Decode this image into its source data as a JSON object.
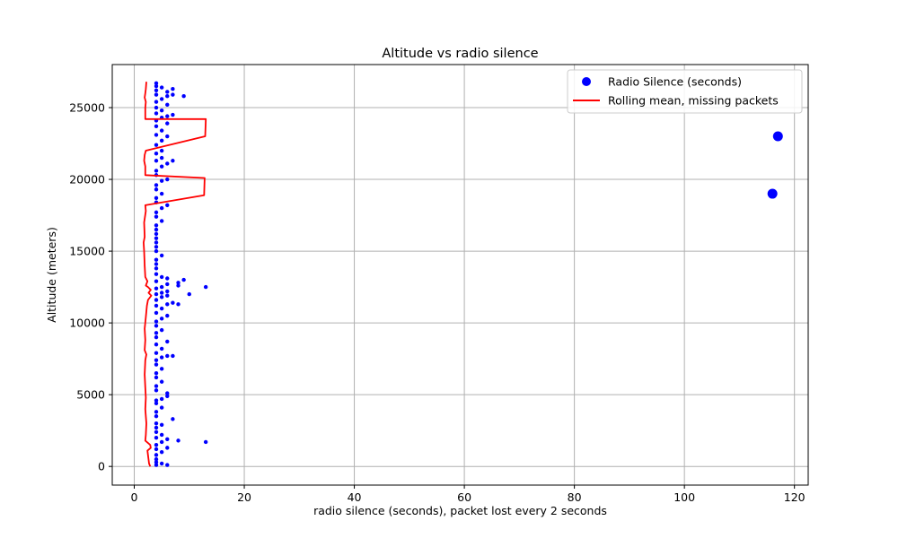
{
  "chart_data": {
    "type": "scatter",
    "title": "Altitude vs radio silence",
    "xlabel": "radio silence (seconds), packet lost every 2 seconds",
    "ylabel": "Altitude (meters)",
    "xlim": [
      -4,
      122.5
    ],
    "ylim": [
      -1300,
      28000
    ],
    "xticks": [
      0,
      20,
      40,
      60,
      80,
      100,
      120
    ],
    "yticks": [
      0,
      5000,
      10000,
      15000,
      20000,
      25000
    ],
    "grid": true,
    "legend_placement": "top-right",
    "colors": {
      "scatter": "#0000ff",
      "line": "#ff0000",
      "grid": "#b0b0b0"
    },
    "series": [
      {
        "name": "Radio Silence (seconds)",
        "kind": "scatter",
        "points": [
          [
            4,
            100
          ],
          [
            4,
            300
          ],
          [
            4,
            500
          ],
          [
            5,
            200
          ],
          [
            6,
            100
          ],
          [
            4,
            800
          ],
          [
            5,
            1000
          ],
          [
            4,
            1200
          ],
          [
            6,
            1300
          ],
          [
            4,
            1500
          ],
          [
            5,
            1700
          ],
          [
            6,
            1900
          ],
          [
            8,
            1800
          ],
          [
            13,
            1700
          ],
          [
            4,
            2000
          ],
          [
            5,
            2200
          ],
          [
            4,
            2400
          ],
          [
            4,
            2700
          ],
          [
            5,
            2900
          ],
          [
            7,
            3300
          ],
          [
            4,
            3000
          ],
          [
            4,
            3500
          ],
          [
            4,
            3800
          ],
          [
            5,
            4100
          ],
          [
            4,
            4400
          ],
          [
            5,
            4700
          ],
          [
            6,
            4900
          ],
          [
            6,
            5100
          ],
          [
            4,
            4600
          ],
          [
            4,
            5300
          ],
          [
            4,
            5600
          ],
          [
            5,
            5900
          ],
          [
            4,
            6200
          ],
          [
            4,
            6500
          ],
          [
            5,
            6800
          ],
          [
            4,
            7100
          ],
          [
            4,
            7400
          ],
          [
            5,
            7600
          ],
          [
            6,
            7700
          ],
          [
            7,
            7700
          ],
          [
            4,
            7900
          ],
          [
            5,
            8200
          ],
          [
            6,
            8700
          ],
          [
            4,
            8500
          ],
          [
            4,
            9000
          ],
          [
            4,
            9300
          ],
          [
            5,
            9500
          ],
          [
            4,
            9800
          ],
          [
            4,
            10100
          ],
          [
            5,
            10300
          ],
          [
            6,
            10500
          ],
          [
            4,
            10700
          ],
          [
            5,
            11000
          ],
          [
            4,
            11200
          ],
          [
            6,
            11300
          ],
          [
            7,
            11400
          ],
          [
            8,
            11300
          ],
          [
            4,
            11600
          ],
          [
            5,
            11800
          ],
          [
            6,
            11900
          ],
          [
            4,
            12000
          ],
          [
            5,
            12100
          ],
          [
            6,
            12200
          ],
          [
            4,
            12400
          ],
          [
            5,
            12500
          ],
          [
            6,
            12700
          ],
          [
            8,
            12600
          ],
          [
            8,
            12800
          ],
          [
            9,
            13000
          ],
          [
            10,
            12000
          ],
          [
            13,
            12500
          ],
          [
            4,
            12900
          ],
          [
            5,
            13200
          ],
          [
            6,
            13100
          ],
          [
            4,
            13400
          ],
          [
            4,
            13800
          ],
          [
            4,
            14100
          ],
          [
            4,
            14400
          ],
          [
            5,
            14700
          ],
          [
            4,
            15000
          ],
          [
            4,
            15300
          ],
          [
            4,
            15600
          ],
          [
            4,
            15900
          ],
          [
            4,
            16200
          ],
          [
            4,
            16500
          ],
          [
            4,
            16800
          ],
          [
            5,
            17100
          ],
          [
            4,
            17400
          ],
          [
            4,
            17700
          ],
          [
            5,
            18000
          ],
          [
            6,
            18200
          ],
          [
            4,
            18400
          ],
          [
            4,
            18700
          ],
          [
            5,
            19000
          ],
          [
            4,
            19300
          ],
          [
            4,
            19600
          ],
          [
            5,
            19900
          ],
          [
            6,
            20000
          ],
          [
            4,
            20300
          ],
          [
            4,
            20600
          ],
          [
            5,
            20900
          ],
          [
            6,
            21100
          ],
          [
            4,
            21300
          ],
          [
            5,
            21500
          ],
          [
            7,
            21300
          ],
          [
            4,
            21800
          ],
          [
            5,
            22000
          ],
          [
            4,
            22400
          ],
          [
            5,
            22700
          ],
          [
            6,
            23000
          ],
          [
            4,
            23100
          ],
          [
            5,
            23400
          ],
          [
            4,
            23700
          ],
          [
            6,
            23900
          ],
          [
            4,
            24100
          ],
          [
            5,
            24300
          ],
          [
            6,
            24400
          ],
          [
            7,
            24500
          ],
          [
            4,
            24600
          ],
          [
            5,
            24800
          ],
          [
            4,
            25000
          ],
          [
            6,
            25200
          ],
          [
            4,
            25400
          ],
          [
            5,
            25600
          ],
          [
            6,
            25800
          ],
          [
            4,
            25900
          ],
          [
            7,
            25900
          ],
          [
            9,
            25800
          ],
          [
            4,
            26200
          ],
          [
            6,
            26100
          ],
          [
            7,
            26300
          ],
          [
            4,
            26500
          ],
          [
            4,
            26700
          ],
          [
            5,
            26400
          ]
        ],
        "outliers": [
          [
            117,
            23000
          ],
          [
            116,
            19000
          ]
        ]
      },
      {
        "name": "Rolling mean, missing packets",
        "kind": "line",
        "points": [
          [
            2.9,
            0
          ],
          [
            2.7,
            200
          ],
          [
            2.6,
            500
          ],
          [
            2.5,
            800
          ],
          [
            2.4,
            1100
          ],
          [
            3.0,
            1300
          ],
          [
            2.9,
            1500
          ],
          [
            2.0,
            1800
          ],
          [
            2.1,
            2200
          ],
          [
            2.2,
            3000
          ],
          [
            2.0,
            4000
          ],
          [
            2.1,
            4800
          ],
          [
            2.0,
            5500
          ],
          [
            1.9,
            6400
          ],
          [
            2.0,
            7400
          ],
          [
            2.2,
            7800
          ],
          [
            1.9,
            8100
          ],
          [
            2.0,
            8800
          ],
          [
            1.9,
            9600
          ],
          [
            2.1,
            10400
          ],
          [
            2.3,
            11200
          ],
          [
            2.5,
            11600
          ],
          [
            3.1,
            11900
          ],
          [
            2.6,
            12100
          ],
          [
            3.0,
            12300
          ],
          [
            2.5,
            12500
          ],
          [
            2.1,
            12600
          ],
          [
            2.4,
            12900
          ],
          [
            2.0,
            13200
          ],
          [
            1.9,
            14000
          ],
          [
            1.8,
            15000
          ],
          [
            1.7,
            15600
          ],
          [
            1.9,
            16000
          ],
          [
            1.8,
            17000
          ],
          [
            2.1,
            17800
          ],
          [
            2.0,
            18200
          ],
          [
            12.7,
            18900
          ],
          [
            12.8,
            20100
          ],
          [
            2.0,
            20300
          ],
          [
            2.0,
            20900
          ],
          [
            1.8,
            21300
          ],
          [
            1.9,
            21700
          ],
          [
            2.1,
            22000
          ],
          [
            12.9,
            23000
          ],
          [
            13.0,
            24200
          ],
          [
            2.0,
            24200
          ],
          [
            2.0,
            24600
          ],
          [
            2.0,
            25000
          ],
          [
            2.1,
            25400
          ],
          [
            1.9,
            25700
          ],
          [
            2.0,
            26000
          ],
          [
            2.1,
            26300
          ],
          [
            2.2,
            26800
          ]
        ]
      }
    ]
  }
}
